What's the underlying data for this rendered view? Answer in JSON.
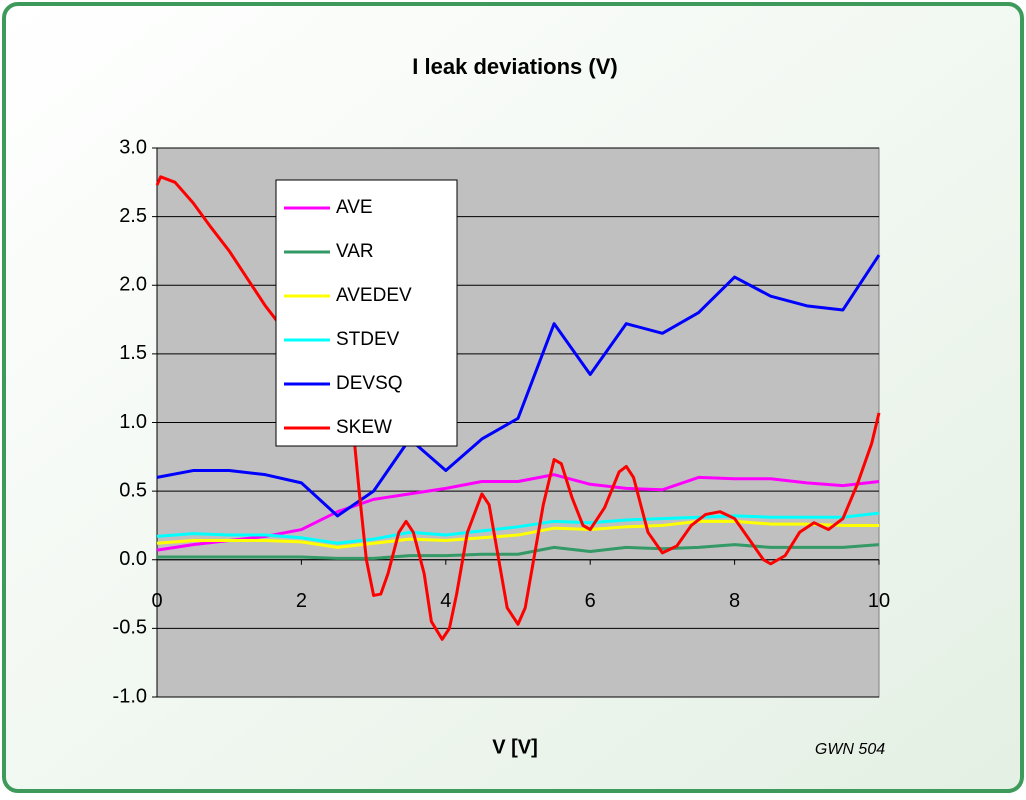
{
  "chart_data": {
    "type": "line",
    "title": "I leak deviations (V)",
    "xlabel": "V [V]",
    "annotation": "GWN 504",
    "xlim": [
      0,
      10
    ],
    "xticks": [
      0,
      2,
      4,
      6,
      8,
      10
    ],
    "ylim": [
      -1,
      3
    ],
    "yticks": [
      {
        "value": -1,
        "label": "-1.0"
      },
      {
        "value": -0.5,
        "label": "-0.5"
      },
      {
        "value": 0,
        "label": "0.0"
      },
      {
        "value": 0.5,
        "label": "0.5"
      },
      {
        "value": 1,
        "label": "1.0"
      },
      {
        "value": 1.5,
        "label": "1.5"
      },
      {
        "value": 2,
        "label": "2.0"
      },
      {
        "value": 2.5,
        "label": "2.5"
      },
      {
        "value": 3,
        "label": "3.0"
      }
    ],
    "grid": true,
    "legend": "upper left",
    "series": [
      {
        "name": "AVE",
        "color": "#ff00ff",
        "x": [
          0,
          0.5,
          1,
          1.5,
          2,
          2.5,
          3,
          3.5,
          4,
          4.5,
          5,
          5.5,
          6,
          6.5,
          7,
          7.5,
          8,
          8.5,
          9,
          9.5,
          10
        ],
        "values": [
          0.07,
          0.11,
          0.14,
          0.17,
          0.22,
          0.35,
          0.44,
          0.48,
          0.52,
          0.57,
          0.57,
          0.62,
          0.55,
          0.52,
          0.51,
          0.6,
          0.59,
          0.59,
          0.56,
          0.54,
          0.57
        ]
      },
      {
        "name": "VAR",
        "color": "#339966",
        "x": [
          0,
          0.5,
          1,
          1.5,
          2,
          2.5,
          3,
          3.5,
          4,
          4.5,
          5,
          5.5,
          6,
          6.5,
          7,
          7.5,
          8,
          8.5,
          9,
          9.5,
          10
        ],
        "values": [
          0.02,
          0.02,
          0.02,
          0.02,
          0.02,
          0.01,
          0.01,
          0.03,
          0.03,
          0.04,
          0.04,
          0.09,
          0.06,
          0.09,
          0.08,
          0.09,
          0.11,
          0.09,
          0.09,
          0.09,
          0.11
        ]
      },
      {
        "name": "AVEDEV",
        "color": "#ffff00",
        "x": [
          0,
          0.5,
          1,
          1.5,
          2,
          2.5,
          3,
          3.5,
          4,
          4.5,
          5,
          5.5,
          6,
          6.5,
          7,
          7.5,
          8,
          8.5,
          9,
          9.5,
          10
        ],
        "values": [
          0.12,
          0.14,
          0.14,
          0.14,
          0.13,
          0.09,
          0.12,
          0.15,
          0.14,
          0.16,
          0.18,
          0.23,
          0.22,
          0.24,
          0.25,
          0.28,
          0.28,
          0.26,
          0.26,
          0.25,
          0.25
        ]
      },
      {
        "name": "STDEV",
        "color": "#00ffff",
        "x": [
          0,
          0.5,
          1,
          1.5,
          2,
          2.5,
          3,
          3.5,
          4,
          4.5,
          5,
          5.5,
          6,
          6.5,
          7,
          7.5,
          8,
          8.5,
          9,
          9.5,
          10
        ],
        "values": [
          0.17,
          0.19,
          0.18,
          0.18,
          0.16,
          0.12,
          0.15,
          0.2,
          0.18,
          0.21,
          0.24,
          0.28,
          0.27,
          0.29,
          0.3,
          0.31,
          0.32,
          0.31,
          0.31,
          0.31,
          0.34
        ]
      },
      {
        "name": "DEVSQ",
        "color": "#0000ff",
        "x": [
          0,
          0.5,
          1,
          1.5,
          2,
          2.5,
          3,
          3.5,
          4,
          4.5,
          5,
          5.5,
          6,
          6.5,
          7,
          7.5,
          8,
          8.5,
          9,
          9.5,
          10
        ],
        "values": [
          0.6,
          0.65,
          0.65,
          0.62,
          0.56,
          0.32,
          0.5,
          0.88,
          0.65,
          0.88,
          1.03,
          1.72,
          1.35,
          1.72,
          1.65,
          1.8,
          2.06,
          1.92,
          1.85,
          1.82,
          2.22
        ]
      },
      {
        "name": "SKEW",
        "color": "#ff0000",
        "x": [
          0,
          0.05,
          0.25,
          0.5,
          0.75,
          1,
          1.25,
          1.5,
          1.75,
          2,
          2.25,
          2.5,
          2.7,
          2.8,
          2.9,
          3,
          3.1,
          3.2,
          3.35,
          3.45,
          3.55,
          3.7,
          3.8,
          3.95,
          4.05,
          4.15,
          4.3,
          4.5,
          4.6,
          4.7,
          4.85,
          5,
          5.1,
          5.2,
          5.35,
          5.5,
          5.6,
          5.75,
          5.9,
          6,
          6.2,
          6.4,
          6.5,
          6.6,
          6.8,
          7,
          7.2,
          7.4,
          7.6,
          7.8,
          8,
          8.2,
          8.4,
          8.5,
          8.7,
          8.9,
          9.1,
          9.3,
          9.5,
          9.7,
          9.9,
          10
        ],
        "values": [
          2.73,
          2.79,
          2.75,
          2.6,
          2.42,
          2.25,
          2.05,
          1.85,
          1.68,
          1.5,
          1.35,
          1.2,
          1.05,
          0.5,
          0,
          -0.26,
          -0.25,
          -0.1,
          0.2,
          0.28,
          0.2,
          -0.1,
          -0.45,
          -0.58,
          -0.5,
          -0.25,
          0.2,
          0.48,
          0.4,
          0.1,
          -0.35,
          -0.47,
          -0.35,
          -0.05,
          0.4,
          0.73,
          0.7,
          0.45,
          0.25,
          0.22,
          0.38,
          0.64,
          0.68,
          0.6,
          0.2,
          0.05,
          0.1,
          0.25,
          0.33,
          0.35,
          0.3,
          0.15,
          0,
          -0.03,
          0.03,
          0.2,
          0.27,
          0.22,
          0.3,
          0.55,
          0.85,
          1.07
        ]
      }
    ]
  }
}
